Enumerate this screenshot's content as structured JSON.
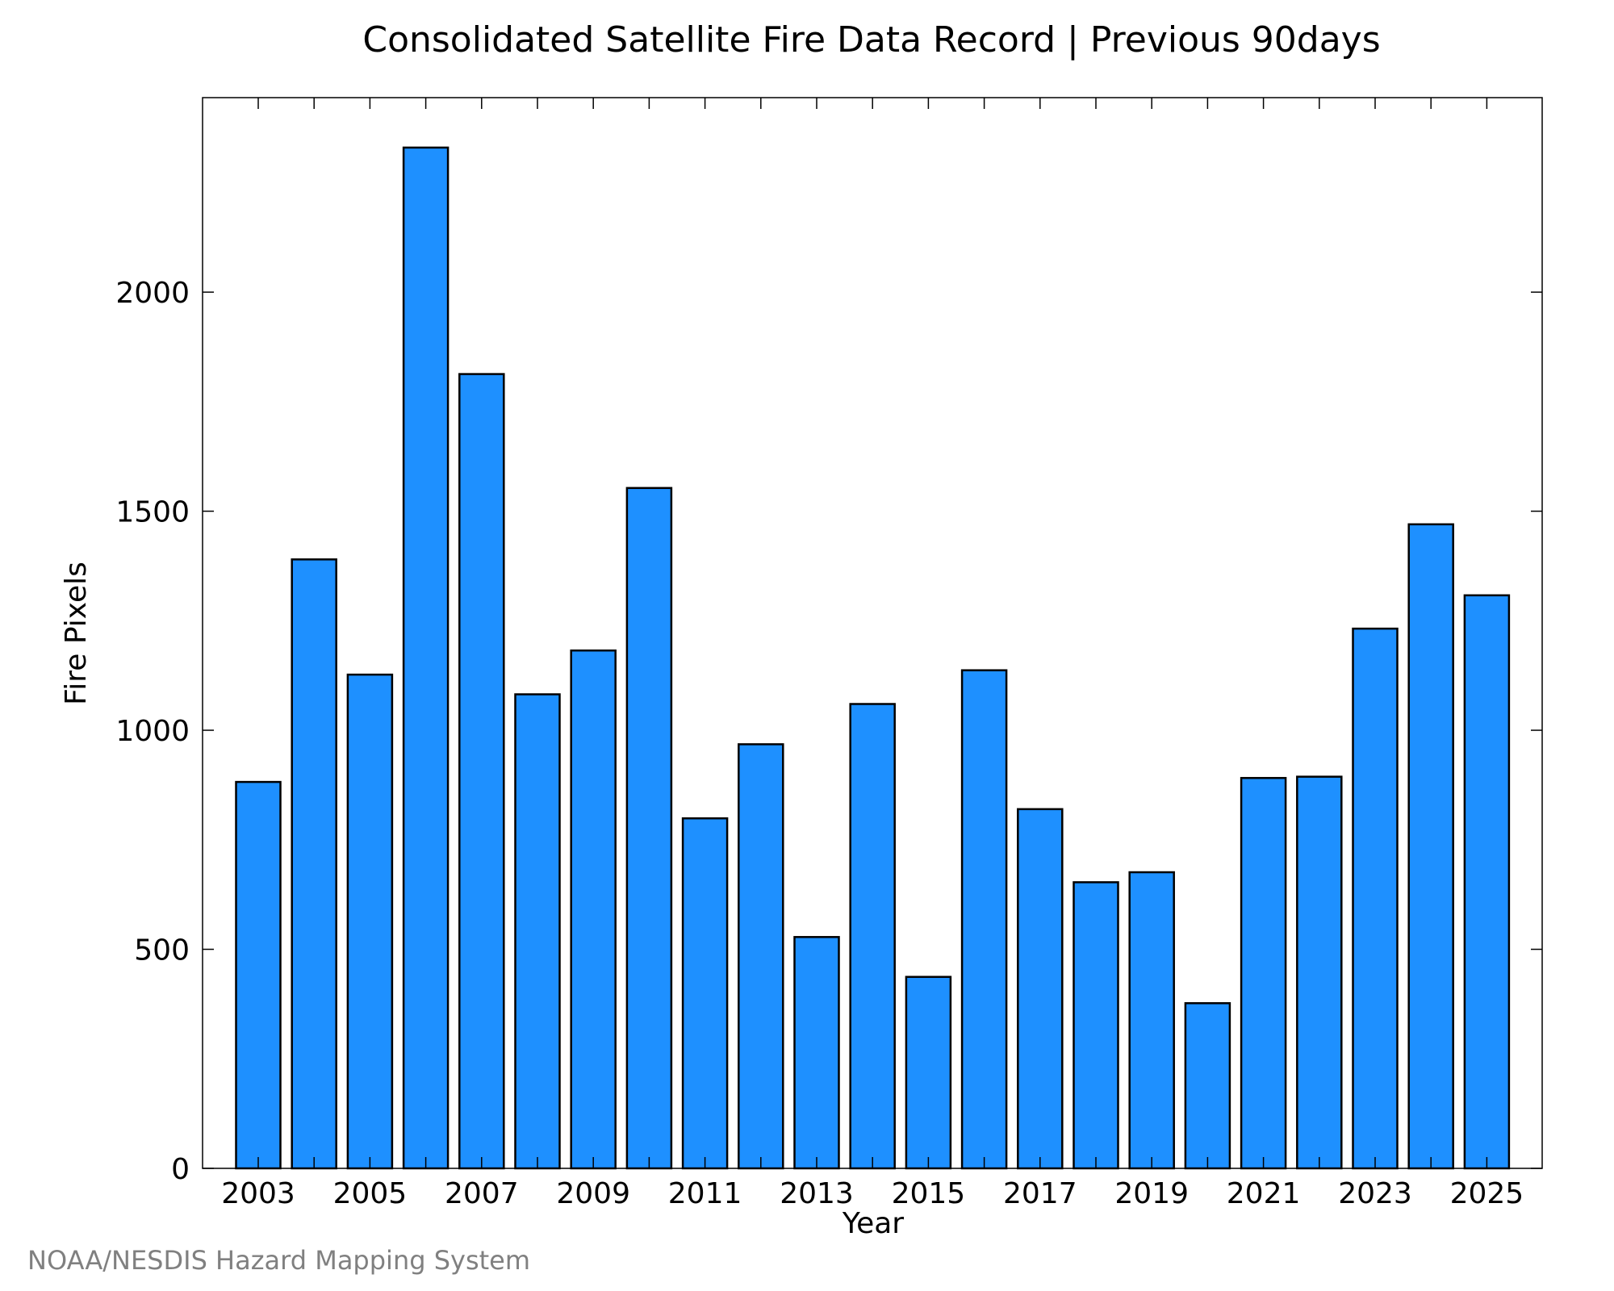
{
  "chart_data": {
    "type": "bar",
    "title": "Consolidated Satellite Fire Data Record | Previous 90days",
    "xlabel": "Year",
    "ylabel": "Fire Pixels",
    "categories": [
      "2003",
      "2004",
      "2005",
      "2006",
      "2007",
      "2008",
      "2009",
      "2010",
      "2011",
      "2012",
      "2013",
      "2014",
      "2015",
      "2016",
      "2017",
      "2018",
      "2019",
      "2020",
      "2021",
      "2022",
      "2023",
      "2024",
      "2025"
    ],
    "values": [
      882,
      1390,
      1127,
      2330,
      1813,
      1082,
      1182,
      1553,
      799,
      968,
      528,
      1060,
      437,
      1137,
      820,
      653,
      676,
      377,
      891,
      894,
      1232,
      1470,
      1308
    ],
    "x_tick_labels": [
      "2003",
      "2005",
      "2007",
      "2009",
      "2011",
      "2013",
      "2015",
      "2017",
      "2019",
      "2021",
      "2023",
      "2025"
    ],
    "y_ticks": [
      0,
      500,
      1000,
      1500,
      2000
    ],
    "ylim": [
      0,
      2444
    ],
    "grid": false,
    "bar_color": "#1e90ff",
    "bar_edge_color": "#000000"
  },
  "footer": {
    "credit": "NOAA/NESDIS Hazard Mapping System"
  }
}
